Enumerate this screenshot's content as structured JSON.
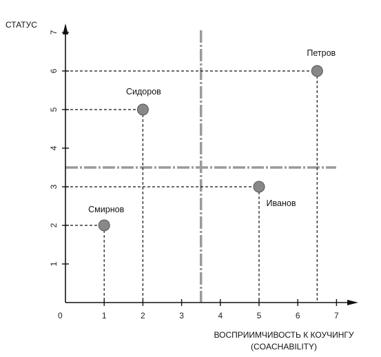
{
  "chart_data": {
    "type": "scatter",
    "ylabel": "СТАТУС",
    "xlabel_line1": "ВОСПРИИМЧИВОСТЬ К КОУЧИНГУ",
    "xlabel_line2": "(COACHABILITY)",
    "origin_label": "0",
    "xlim": [
      0,
      7
    ],
    "ylim": [
      0,
      7
    ],
    "x_ticks": [
      1,
      2,
      3,
      4,
      5,
      6,
      7
    ],
    "y_ticks": [
      1,
      2,
      3,
      4,
      5,
      6,
      7
    ],
    "quadrant_lines": {
      "x": 3.5,
      "y": 3.5
    },
    "points": [
      {
        "name": "Смирнов",
        "x": 1,
        "y": 2
      },
      {
        "name": "Сидоров",
        "x": 2,
        "y": 5
      },
      {
        "name": "Иванов",
        "x": 5,
        "y": 3
      },
      {
        "name": "Петров",
        "x": 6.5,
        "y": 6
      }
    ],
    "colors": {
      "point_fill": "#888888",
      "point_stroke": "#555555",
      "quadrant_line": "#9a9a9a",
      "axis": "#111111"
    }
  }
}
